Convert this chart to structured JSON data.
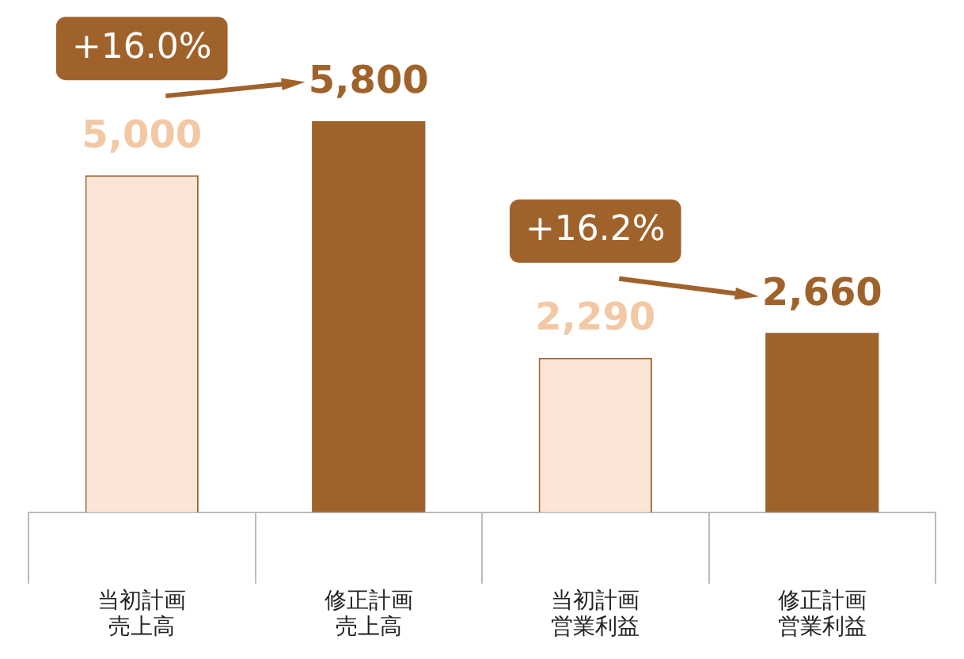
{
  "chart_data": {
    "type": "bar",
    "categories": [
      "当初計画売上高",
      "修正計画売上高",
      "当初計画営業利益",
      "修正計画営業利益"
    ],
    "stacked": true,
    "grid": false,
    "legend": false,
    "series": [
      {
        "color": "#fbe5d6",
        "line_style": "dashed",
        "values": [
          5000,
          null,
          2290,
          null
        ],
        "value_labels": [
          "5,000",
          null,
          "2,290",
          null
        ]
      },
      {
        "color": "#a0622b",
        "values": [
          null,
          5800,
          null,
          2660
        ],
        "value_labels": [
          null,
          "5,800",
          null,
          "2,660"
        ]
      }
    ],
    "annotations": [
      "+16.0%",
      "+16.2%"
    ]
  }
}
